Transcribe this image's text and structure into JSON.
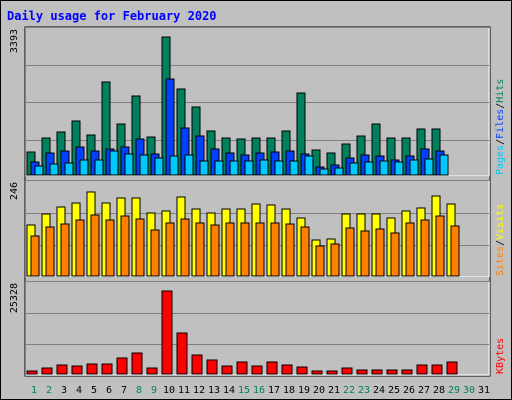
{
  "title": "Daily usage for February 2020",
  "colors": {
    "hits": "#00805c",
    "files": "#0040ff",
    "pages": "#00c8ff",
    "visits": "#ffff00",
    "sites": "#ff8000",
    "kbytes": "#ff0000",
    "weekend_label": "#00805c",
    "weekday_label": "#000000",
    "panel_bg": "#c0c0c0"
  },
  "chart_data": [
    {
      "type": "bar",
      "name": "hits-files-pages",
      "ymax_label": "3393",
      "ylim": [
        0,
        3393
      ],
      "legend": [
        "Pages",
        "/",
        "Files",
        "/",
        "Hits"
      ],
      "categories": [
        "1",
        "2",
        "3",
        "4",
        "5",
        "6",
        "7",
        "8",
        "9",
        "10",
        "11",
        "12",
        "13",
        "14",
        "15",
        "16",
        "17",
        "18",
        "19",
        "20",
        "21",
        "22",
        "23",
        "24",
        "25",
        "26",
        "27",
        "28",
        "29",
        "30",
        "31"
      ],
      "series": [
        {
          "name": "Hits",
          "values": [
            570,
            920,
            1050,
            1320,
            980,
            2280,
            1260,
            1950,
            930,
            3393,
            2110,
            1680,
            1090,
            910,
            880,
            920,
            920,
            1090,
            2010,
            620,
            540,
            770,
            970,
            1260,
            900,
            900,
            1130,
            1130,
            0,
            0,
            0
          ]
        },
        {
          "name": "Files",
          "values": [
            310,
            540,
            580,
            700,
            590,
            630,
            700,
            880,
            510,
            2370,
            1150,
            950,
            640,
            540,
            480,
            540,
            570,
            580,
            520,
            190,
            240,
            410,
            490,
            470,
            380,
            460,
            650,
            590,
            0,
            0,
            0
          ]
        },
        {
          "name": "Pages",
          "values": [
            210,
            280,
            300,
            380,
            360,
            600,
            520,
            480,
            420,
            470,
            480,
            350,
            350,
            350,
            350,
            360,
            350,
            350,
            460,
            150,
            160,
            300,
            310,
            340,
            310,
            370,
            400,
            480,
            0,
            0,
            0
          ]
        }
      ]
    },
    {
      "type": "bar",
      "name": "visits-sites",
      "ymax_label": "246",
      "ylim": [
        0,
        246
      ],
      "legend": [
        "Sites",
        "/",
        "Visits"
      ],
      "categories": [
        "1",
        "2",
        "3",
        "4",
        "5",
        "6",
        "7",
        "8",
        "9",
        "10",
        "11",
        "12",
        "13",
        "14",
        "15",
        "16",
        "17",
        "18",
        "19",
        "20",
        "21",
        "22",
        "23",
        "24",
        "25",
        "26",
        "27",
        "28",
        "29",
        "30",
        "31"
      ],
      "series": [
        {
          "name": "Visits",
          "values": [
            145,
            178,
            196,
            210,
            240,
            210,
            222,
            222,
            180,
            185,
            227,
            192,
            181,
            193,
            192,
            205,
            204,
            192,
            166,
            104,
            105,
            177,
            176,
            178,
            166,
            186,
            195,
            230,
            206,
            0,
            0
          ]
        },
        {
          "name": "Sites",
          "values": [
            114,
            140,
            149,
            161,
            175,
            160,
            171,
            162,
            133,
            151,
            162,
            151,
            146,
            151,
            151,
            151,
            151,
            150,
            141,
            86,
            91,
            137,
            128,
            134,
            122,
            153,
            159,
            172,
            142,
            0,
            0
          ]
        }
      ]
    },
    {
      "type": "bar",
      "name": "kbytes",
      "ymax_label": "25328",
      "ylim": [
        0,
        25328
      ],
      "legend": [
        "KBytes"
      ],
      "categories": [
        "1",
        "2",
        "3",
        "4",
        "5",
        "6",
        "7",
        "8",
        "9",
        "10",
        "11",
        "12",
        "13",
        "14",
        "15",
        "16",
        "17",
        "18",
        "19",
        "20",
        "21",
        "22",
        "23",
        "24",
        "25",
        "26",
        "27",
        "28",
        "29",
        "30",
        "31"
      ],
      "series": [
        {
          "name": "KBytes",
          "values": [
            900,
            1700,
            2700,
            2300,
            2900,
            3000,
            4900,
            6500,
            1800,
            25328,
            12600,
            5800,
            4400,
            2300,
            3600,
            2300,
            3700,
            2700,
            2100,
            800,
            900,
            1700,
            1300,
            1300,
            1100,
            1100,
            2600,
            2700,
            3600,
            0,
            0
          ]
        }
      ]
    }
  ]
}
